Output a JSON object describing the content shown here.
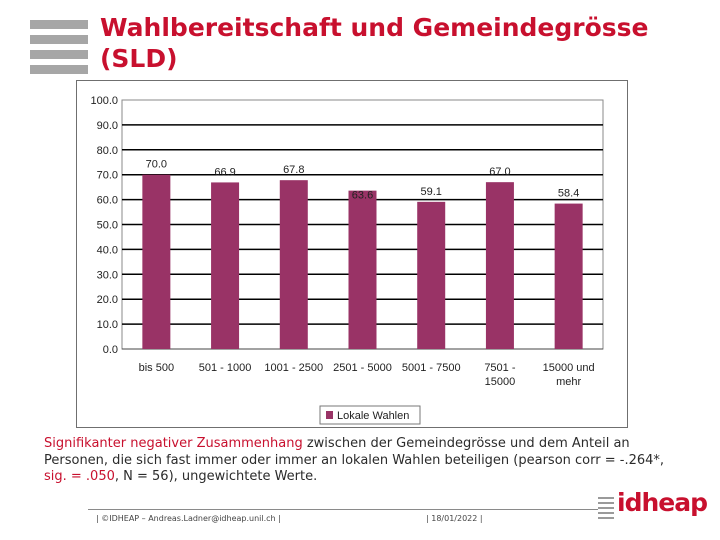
{
  "slide": {
    "title": "Wahlbereitschaft und Gemeindegrösse (SLD)",
    "caption_red_1": "Signifikanter negativer Zusammenhang",
    "caption_mid": " zwischen der Gemeindegrösse und dem Anteil an Personen, die sich fast immer oder immer an lokalen Wahlen beteiligen (pearson corr = -.264*, ",
    "caption_red_2": "sig. = .050",
    "caption_end": ", N = 56), ungewichtete Werte.",
    "footer_left": "| ©IDHEAP – Andreas.Ladner@idheap.unil.ch |",
    "footer_date": "| 18/01/2022 |",
    "logo_text": "idheap"
  },
  "colors": {
    "accent": "#c8102e",
    "bar": "#993366"
  },
  "chart_data": {
    "type": "bar",
    "title": "",
    "xlabel": "",
    "ylabel": "",
    "ylim": [
      0,
      100
    ],
    "yticks": [
      "100.0",
      "90.0",
      "80.0",
      "70.0",
      "60.0",
      "50.0",
      "40.0",
      "30.0",
      "20.0",
      "10.0",
      "0.0"
    ],
    "ytick_values": [
      100,
      90,
      80,
      70,
      60,
      50,
      40,
      30,
      20,
      10,
      0
    ],
    "categories": [
      [
        "bis 500"
      ],
      [
        "501 - 1000"
      ],
      [
        "1001 - 2500"
      ],
      [
        "2501 - 5000"
      ],
      [
        "5001 - 7500"
      ],
      [
        "7501 -",
        "15000"
      ],
      [
        "15000 und",
        "mehr"
      ]
    ],
    "series": [
      {
        "name": "Lokale Wahlen",
        "values": [
          70.0,
          66.9,
          67.8,
          63.6,
          59.1,
          67.0,
          58.4
        ]
      }
    ],
    "value_labels": [
      "70.0",
      "66.9",
      "67.8",
      "63.6",
      "59.1",
      "67.0",
      "58.4"
    ],
    "grid": true,
    "legend": "bottom-center"
  }
}
